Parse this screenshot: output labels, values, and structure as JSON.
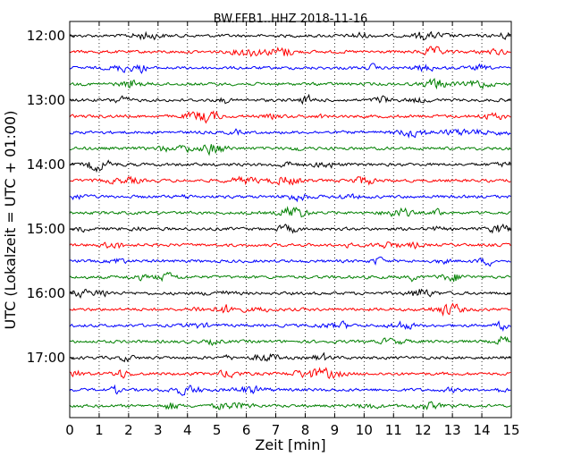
{
  "chart_data": {
    "type": "line",
    "title": "BW.FFB1..HHZ 2018-11-16",
    "xlabel": "Zeit  [min]",
    "ylabel": "UTC (Lokalzeit = UTC + 01:00)",
    "xlim": [
      0,
      15
    ],
    "x_ticks": [
      "0",
      "1",
      "2",
      "3",
      "4",
      "5",
      "6",
      "7",
      "8",
      "9",
      "10",
      "11",
      "12",
      "13",
      "14",
      "15"
    ],
    "y_ticks": [
      "12:00",
      "13:00",
      "14:00",
      "15:00",
      "16:00",
      "17:00"
    ],
    "grid": "x-dotted",
    "trace_interval_minutes": 15,
    "trace_count": 24,
    "trace_colors": [
      "#000000",
      "#ff0000",
      "#0000ff",
      "#008000"
    ]
  }
}
